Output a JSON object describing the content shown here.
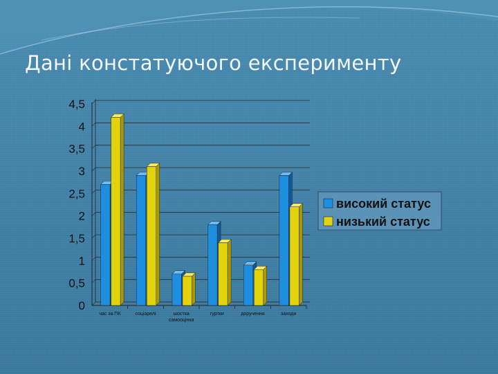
{
  "slide": {
    "title": "Дані констатуючого експерименту"
  },
  "colors": {
    "background": "#3f7ea5",
    "series_high": "#1e8fe0",
    "series_low": "#e3d30c"
  },
  "chart_data": {
    "type": "bar",
    "categories": [
      [
        "час за ПК"
      ],
      [
        "соціарелі"
      ],
      [
        "шостка",
        "самооцінка"
      ],
      [
        "гуртки"
      ],
      [
        "доручення"
      ],
      [
        "заходи"
      ]
    ],
    "series": [
      {
        "name": "високий статус",
        "values": [
          2.7,
          2.9,
          0.7,
          1.8,
          0.9,
          2.9
        ]
      },
      {
        "name": "низький статус",
        "values": [
          4.2,
          3.1,
          0.65,
          1.4,
          0.8,
          2.2
        ]
      }
    ],
    "yticks": [
      "0",
      "0,5",
      "1",
      "1,5",
      "2",
      "2,5",
      "3",
      "3,5",
      "4",
      "4,5"
    ],
    "ylim": [
      0,
      4.5
    ],
    "grid": true,
    "legend": "right",
    "title": "",
    "xlabel": "",
    "ylabel": ""
  }
}
